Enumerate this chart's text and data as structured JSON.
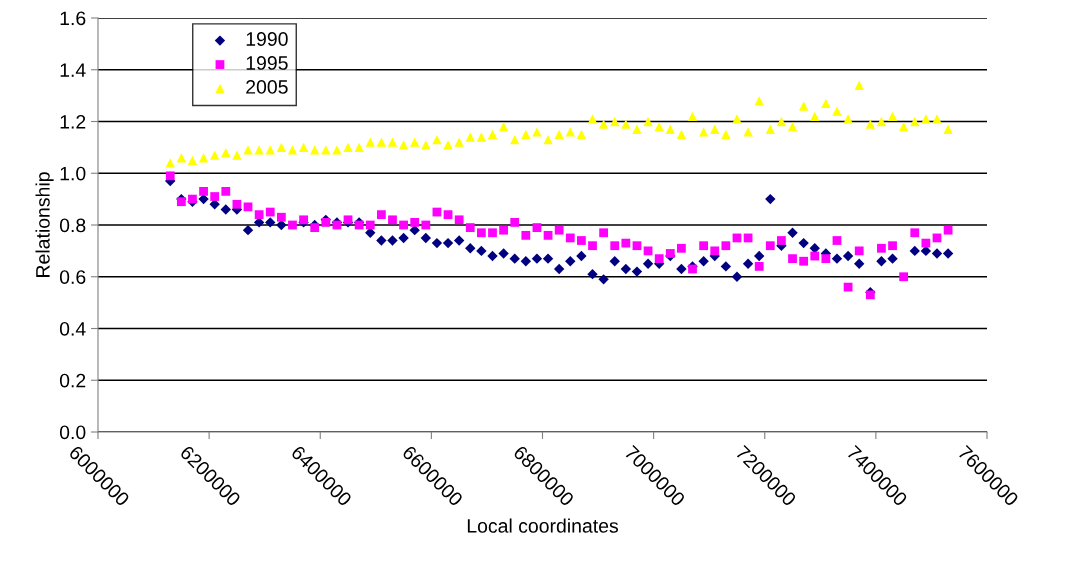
{
  "chart_data": {
    "type": "scatter",
    "xlabel": "Local coordinates",
    "ylabel": "Relationship",
    "x": [
      6130000,
      6150000,
      6170000,
      6190000,
      6210000,
      6230000,
      6250000,
      6270000,
      6290000,
      6310000,
      6330000,
      6350000,
      6370000,
      6390000,
      6410000,
      6430000,
      6450000,
      6470000,
      6490000,
      6510000,
      6530000,
      6550000,
      6570000,
      6590000,
      6610000,
      6630000,
      6650000,
      6670000,
      6690000,
      6710000,
      6730000,
      6750000,
      6770000,
      6790000,
      6810000,
      6830000,
      6850000,
      6870000,
      6890000,
      6910000,
      6930000,
      6950000,
      6970000,
      6990000,
      7010000,
      7030000,
      7050000,
      7070000,
      7090000,
      7110000,
      7130000,
      7150000,
      7170000,
      7190000,
      7210000,
      7230000,
      7250000,
      7270000,
      7290000,
      7310000,
      7330000,
      7350000,
      7370000,
      7390000,
      7410000,
      7430000,
      7450000,
      7470000,
      7490000,
      7510000,
      7530000
    ],
    "series": [
      {
        "name": "1990",
        "color": "#000080",
        "marker": "diamond",
        "values": [
          0.97,
          0.9,
          0.89,
          0.9,
          0.88,
          0.86,
          0.86,
          0.78,
          0.81,
          0.81,
          0.8,
          null,
          0.81,
          0.8,
          0.82,
          0.81,
          0.81,
          0.81,
          0.77,
          0.74,
          0.74,
          0.75,
          0.78,
          0.75,
          0.73,
          0.73,
          0.74,
          0.71,
          0.7,
          0.68,
          0.69,
          0.67,
          0.66,
          0.67,
          0.67,
          0.63,
          0.66,
          0.68,
          0.61,
          0.59,
          0.66,
          0.63,
          0.62,
          0.65,
          0.65,
          0.68,
          0.63,
          0.64,
          0.66,
          0.68,
          0.64,
          0.6,
          0.65,
          0.68,
          0.9,
          0.72,
          0.77,
          0.73,
          0.71,
          0.69,
          0.67,
          0.68,
          0.65,
          0.54,
          0.66,
          0.67,
          null,
          0.7,
          0.7,
          0.69,
          0.69
        ]
      },
      {
        "name": "1995",
        "color": "#ff00ff",
        "marker": "square",
        "values": [
          0.99,
          0.89,
          0.9,
          0.93,
          0.91,
          0.93,
          0.88,
          0.87,
          0.84,
          0.85,
          0.83,
          0.8,
          0.82,
          0.79,
          0.81,
          0.8,
          0.82,
          0.8,
          0.8,
          0.84,
          0.82,
          0.8,
          0.81,
          0.8,
          0.85,
          0.84,
          0.82,
          0.79,
          0.77,
          0.77,
          0.78,
          0.81,
          0.76,
          0.79,
          0.76,
          0.78,
          0.75,
          0.74,
          0.72,
          0.77,
          0.72,
          0.73,
          0.72,
          0.7,
          0.67,
          0.69,
          0.71,
          0.63,
          0.72,
          0.7,
          0.72,
          0.75,
          0.75,
          0.64,
          0.72,
          0.74,
          0.67,
          0.66,
          0.68,
          0.67,
          0.74,
          0.56,
          0.7,
          0.53,
          0.71,
          0.72,
          0.6,
          0.77,
          0.73,
          0.75,
          0.78
        ]
      },
      {
        "name": "2005",
        "color": "#ffff00",
        "marker": "triangle",
        "values": [
          1.04,
          1.06,
          1.05,
          1.06,
          1.07,
          1.08,
          1.07,
          1.09,
          1.09,
          1.09,
          1.1,
          1.09,
          1.1,
          1.09,
          1.09,
          1.09,
          1.1,
          1.1,
          1.12,
          1.12,
          1.12,
          1.11,
          1.12,
          1.11,
          1.13,
          1.11,
          1.12,
          1.14,
          1.14,
          1.15,
          1.18,
          1.13,
          1.15,
          1.16,
          1.13,
          1.15,
          1.16,
          1.15,
          1.21,
          1.19,
          1.2,
          1.19,
          1.17,
          1.2,
          1.18,
          1.17,
          1.15,
          1.22,
          1.16,
          1.17,
          1.15,
          1.21,
          1.16,
          1.28,
          1.17,
          1.2,
          1.18,
          1.26,
          1.22,
          1.27,
          1.24,
          1.21,
          1.34,
          1.19,
          1.2,
          1.22,
          1.18,
          1.2,
          1.21,
          1.21,
          1.17
        ]
      }
    ],
    "xlim": [
      6000000,
      7600000
    ],
    "xticks": [
      6000000,
      6200000,
      6400000,
      6600000,
      6800000,
      7000000,
      7200000,
      7400000,
      7600000
    ],
    "ylim": [
      0,
      1.6
    ],
    "yticks": [
      {
        "value": 0,
        "label": "0.0"
      },
      0.2,
      0.4,
      0.6,
      0.8,
      {
        "value": 1,
        "label": "1.0"
      },
      1.2,
      1.4,
      1.6
    ],
    "grid": "y",
    "legend": "top left"
  }
}
